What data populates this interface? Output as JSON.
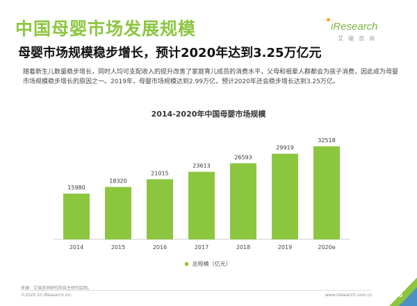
{
  "page": {
    "title": "中国母婴市场发展规模",
    "subtitle": "母婴市场规模稳步增长，预计2020年达到3.25万亿元",
    "body": "随着新生儿数量稳步增长，同时人均可支配收入的提升改善了家庭育儿成员的消费水平，父母和祖辈人群都会为孩子消费，因此成为母婴市场规模稳步增长的原因之一。2019年，母婴市场规模达到2.99万亿，预计2020年还会稳步增长达到3.25万亿。",
    "source": "来源：艾瑞咨询研究院自主研究绘制。",
    "copyright": "©2020.10 iResearch Inc.",
    "website": "www.iresearch.com.cn",
    "page_number": "6"
  },
  "logo": {
    "brand": "iResearch",
    "tagline": "艾瑞咨询"
  },
  "colors": {
    "accent": "#8cc63f",
    "bar": "#8cc63f"
  },
  "chart_data": {
    "type": "bar",
    "title": "2014-2020年中国母婴市场规模",
    "categories": [
      "2014",
      "2015",
      "2016",
      "2017",
      "2018",
      "2019",
      "2020e"
    ],
    "series": [
      {
        "name": "总规模（亿元）",
        "values": [
          15980,
          18320,
          21015,
          23613,
          26593,
          29919,
          32518
        ]
      }
    ],
    "data_labels": [
      "15980",
      "18320",
      "21015",
      "23613",
      "26593",
      "29919",
      "32518"
    ],
    "ylim": [
      0,
      40000
    ],
    "grid": false,
    "legend": "bottom-center"
  }
}
